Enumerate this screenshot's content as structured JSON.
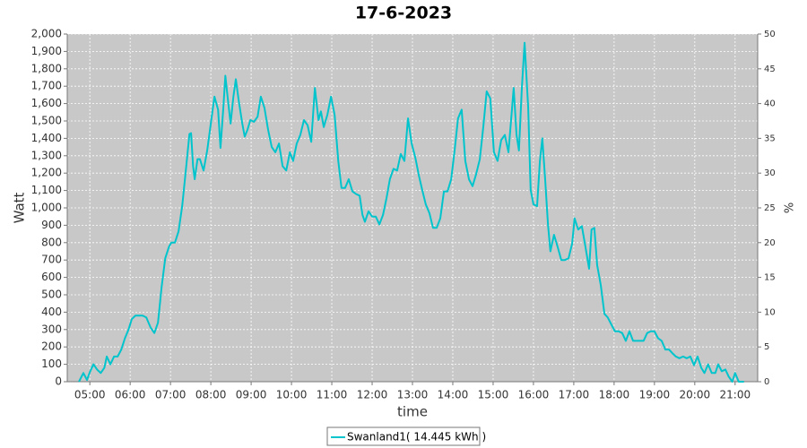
{
  "chart_data": {
    "type": "line",
    "title": "17-6-2023",
    "x_label": "time",
    "y_label": "Watt",
    "y2_label": "%",
    "xlim": [
      4.44,
      21.56
    ],
    "xticks": [
      {
        "value": 5,
        "label": "05:00"
      },
      {
        "value": 6,
        "label": "06:00"
      },
      {
        "value": 7,
        "label": "07:00"
      },
      {
        "value": 8,
        "label": "08:00"
      },
      {
        "value": 9,
        "label": "09:00"
      },
      {
        "value": 10,
        "label": "10:00"
      },
      {
        "value": 11,
        "label": "11:00"
      },
      {
        "value": 12,
        "label": "12:00"
      },
      {
        "value": 13,
        "label": "13:00"
      },
      {
        "value": 14,
        "label": "14:00"
      },
      {
        "value": 15,
        "label": "15:00"
      },
      {
        "value": 16,
        "label": "16:00"
      },
      {
        "value": 17,
        "label": "17:00"
      },
      {
        "value": 18,
        "label": "18:00"
      },
      {
        "value": 19,
        "label": "19:00"
      },
      {
        "value": 20,
        "label": "20:00"
      },
      {
        "value": 21,
        "label": "21:00"
      }
    ],
    "ylim": [
      0,
      2000
    ],
    "yticks": [
      0,
      100,
      200,
      300,
      400,
      500,
      600,
      700,
      800,
      900,
      {
        "value": 1000,
        "label": "1,000"
      },
      {
        "value": 1100,
        "label": "1,100"
      },
      {
        "value": 1200,
        "label": "1,200"
      },
      {
        "value": 1300,
        "label": "1,300"
      },
      {
        "value": 1400,
        "label": "1,400"
      },
      {
        "value": 1500,
        "label": "1,500"
      },
      {
        "value": 1600,
        "label": "1,600"
      },
      {
        "value": 1700,
        "label": "1,700"
      },
      {
        "value": 1800,
        "label": "1,800"
      },
      {
        "value": 1900,
        "label": "1,900"
      },
      {
        "value": 2000,
        "label": "2,000"
      }
    ],
    "y2lim": [
      0,
      50
    ],
    "y2ticks": [
      0,
      5,
      10,
      15,
      20,
      25,
      30,
      35,
      40,
      45,
      50
    ],
    "grid": true,
    "x": [
      4.73,
      4.84,
      4.93,
      5.0,
      5.09,
      5.18,
      5.27,
      5.36,
      5.42,
      5.51,
      5.6,
      5.69,
      5.78,
      5.87,
      5.96,
      6.04,
      6.13,
      6.22,
      6.31,
      6.4,
      6.51,
      6.6,
      6.69,
      6.78,
      6.87,
      6.96,
      7.02,
      7.11,
      7.2,
      7.29,
      7.38,
      7.47,
      7.51,
      7.56,
      7.6,
      7.67,
      7.73,
      7.82,
      7.91,
      8.0,
      8.09,
      8.18,
      8.24,
      8.31,
      8.36,
      8.42,
      8.49,
      8.56,
      8.62,
      8.69,
      8.78,
      8.84,
      8.91,
      8.98,
      9.07,
      9.16,
      9.24,
      9.33,
      9.42,
      9.51,
      9.6,
      9.69,
      9.78,
      9.87,
      9.96,
      10.04,
      10.13,
      10.22,
      10.31,
      10.4,
      10.49,
      10.58,
      10.67,
      10.73,
      10.8,
      10.89,
      10.98,
      11.07,
      11.16,
      11.24,
      11.33,
      11.42,
      11.51,
      11.6,
      11.69,
      11.76,
      11.82,
      11.91,
      12.0,
      12.09,
      12.18,
      12.27,
      12.36,
      12.44,
      12.53,
      12.62,
      12.71,
      12.8,
      12.89,
      12.98,
      13.07,
      13.16,
      13.24,
      13.33,
      13.42,
      13.51,
      13.6,
      13.69,
      13.78,
      13.87,
      13.96,
      14.04,
      14.13,
      14.22,
      14.31,
      14.4,
      14.49,
      14.58,
      14.67,
      14.76,
      14.84,
      14.93,
      15.02,
      15.11,
      15.2,
      15.29,
      15.38,
      15.47,
      15.51,
      15.58,
      15.64,
      15.71,
      15.78,
      15.87,
      15.93,
      16.0,
      16.09,
      16.16,
      16.22,
      16.29,
      16.36,
      16.42,
      16.51,
      16.6,
      16.69,
      16.78,
      16.87,
      16.96,
      17.02,
      17.11,
      17.2,
      17.29,
      17.38,
      17.44,
      17.51,
      17.58,
      17.67,
      17.76,
      17.84,
      17.93,
      18.02,
      18.11,
      18.2,
      18.29,
      18.38,
      18.47,
      18.56,
      18.64,
      18.73,
      18.82,
      18.91,
      19.0,
      19.09,
      19.18,
      19.27,
      19.36,
      19.44,
      19.53,
      19.62,
      19.71,
      19.8,
      19.89,
      19.98,
      20.07,
      20.16,
      20.24,
      20.33,
      20.42,
      20.51,
      20.58,
      20.67,
      20.76,
      20.84,
      20.93,
      21.0,
      21.09,
      21.22
    ],
    "series": [
      {
        "name": "Swanland1( 14.445 kWh )",
        "color": "#00c4cc",
        "values": [
          0,
          50,
          10,
          55,
          100,
          70,
          50,
          80,
          145,
          100,
          145,
          145,
          185,
          250,
          300,
          360,
          380,
          380,
          380,
          370,
          310,
          280,
          340,
          545,
          710,
          775,
          800,
          800,
          865,
          1010,
          1215,
          1425,
          1430,
          1240,
          1165,
          1280,
          1280,
          1215,
          1330,
          1485,
          1640,
          1565,
          1345,
          1575,
          1760,
          1630,
          1485,
          1640,
          1740,
          1620,
          1485,
          1410,
          1450,
          1505,
          1495,
          1525,
          1640,
          1575,
          1450,
          1350,
          1320,
          1370,
          1240,
          1215,
          1320,
          1270,
          1370,
          1420,
          1505,
          1475,
          1380,
          1690,
          1505,
          1555,
          1465,
          1535,
          1640,
          1535,
          1270,
          1115,
          1115,
          1165,
          1095,
          1080,
          1070,
          960,
          920,
          980,
          950,
          950,
          905,
          960,
          1060,
          1165,
          1225,
          1215,
          1310,
          1270,
          1515,
          1370,
          1290,
          1185,
          1105,
          1020,
          970,
          885,
          885,
          940,
          1095,
          1095,
          1165,
          1320,
          1515,
          1565,
          1270,
          1165,
          1125,
          1195,
          1280,
          1475,
          1670,
          1630,
          1320,
          1270,
          1390,
          1420,
          1320,
          1575,
          1690,
          1420,
          1330,
          1680,
          1950,
          1575,
          1105,
          1020,
          1010,
          1270,
          1400,
          1165,
          905,
          750,
          845,
          775,
          700,
          700,
          710,
          795,
          940,
          875,
          895,
          775,
          650,
          875,
          885,
          670,
          555,
          390,
          370,
          330,
          290,
          290,
          280,
          235,
          290,
          235,
          235,
          235,
          235,
          280,
          290,
          290,
          250,
          235,
          185,
          185,
          165,
          145,
          135,
          145,
          135,
          145,
          95,
          145,
          80,
          50,
          100,
          50,
          50,
          100,
          60,
          70,
          30,
          0,
          50,
          0,
          0
        ]
      }
    ]
  }
}
